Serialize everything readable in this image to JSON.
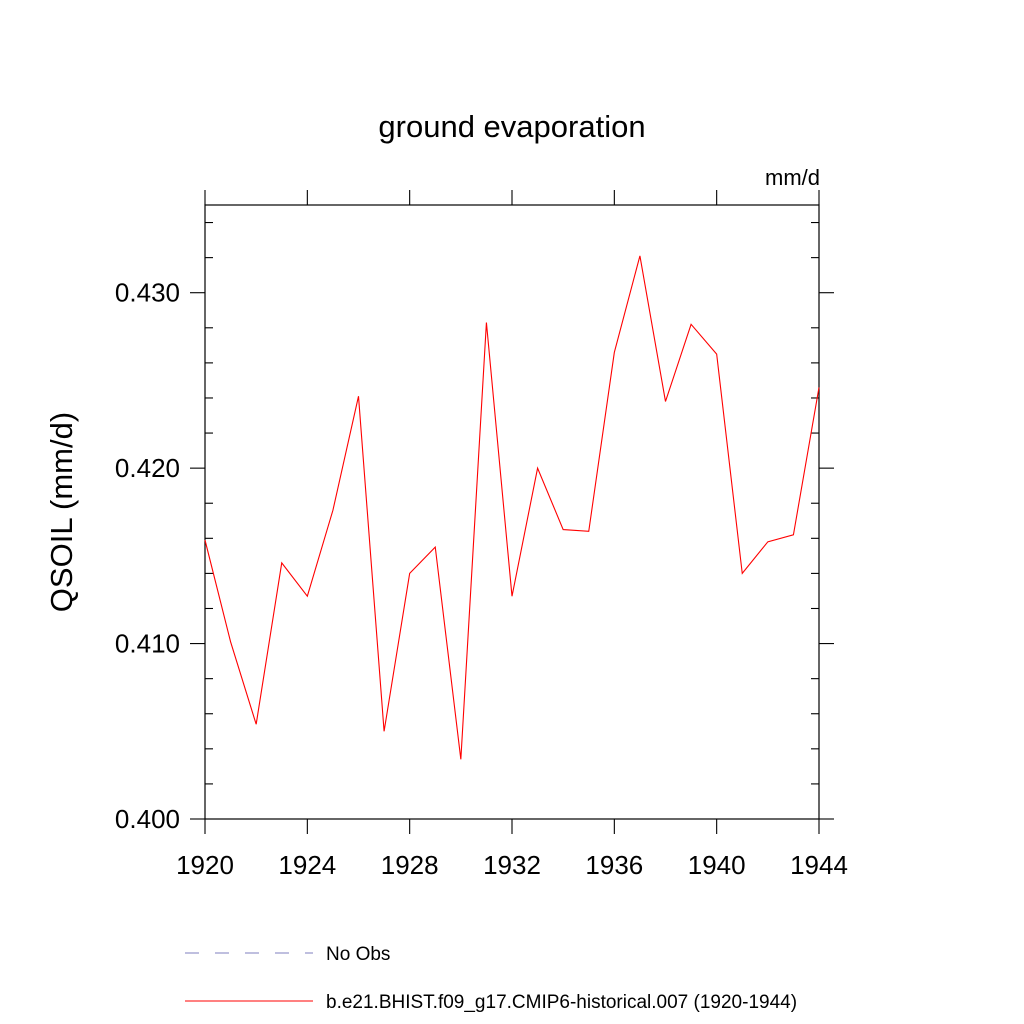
{
  "chart_data": {
    "type": "line",
    "title": "ground evaporation",
    "units_label": "mm/d",
    "ylabel": "QSOIL  (mm/d)",
    "xlabel": "",
    "xlim": [
      1920,
      1944
    ],
    "ylim": [
      0.4,
      0.435
    ],
    "x_ticks": [
      "1920",
      "1924",
      "1928",
      "1932",
      "1936",
      "1940",
      "1944"
    ],
    "y_ticks": [
      "0.400",
      "0.410",
      "0.420",
      "0.430"
    ],
    "x": [
      1920,
      1921,
      1922,
      1923,
      1924,
      1925,
      1926,
      1927,
      1928,
      1929,
      1930,
      1931,
      1932,
      1933,
      1934,
      1935,
      1936,
      1937,
      1938,
      1939,
      1940,
      1941,
      1942,
      1943,
      1944
    ],
    "series": [
      {
        "name": "b.e21.BHIST.f09_g17.CMIP6-historical.007 (1920-1944)",
        "color": "#ff0000",
        "style": "solid",
        "values": [
          0.4159,
          0.4101,
          0.4054,
          0.4146,
          0.4127,
          0.4176,
          0.4241,
          0.405,
          0.414,
          0.4155,
          0.4034,
          0.4283,
          0.4127,
          0.42,
          0.4165,
          0.4164,
          0.4266,
          0.4321,
          0.4238,
          0.4282,
          0.4265,
          0.414,
          0.4158,
          0.4162,
          0.4246
        ]
      }
    ],
    "legend": {
      "placement": "bottom-left",
      "entries": [
        {
          "label": "No Obs",
          "color": "#7f7fbf",
          "style": "dashed"
        },
        {
          "label": "b.e21.BHIST.f09_g17.CMIP6-historical.007 (1920-1944)",
          "color": "#ff0000",
          "style": "solid"
        }
      ]
    },
    "grid": false
  }
}
